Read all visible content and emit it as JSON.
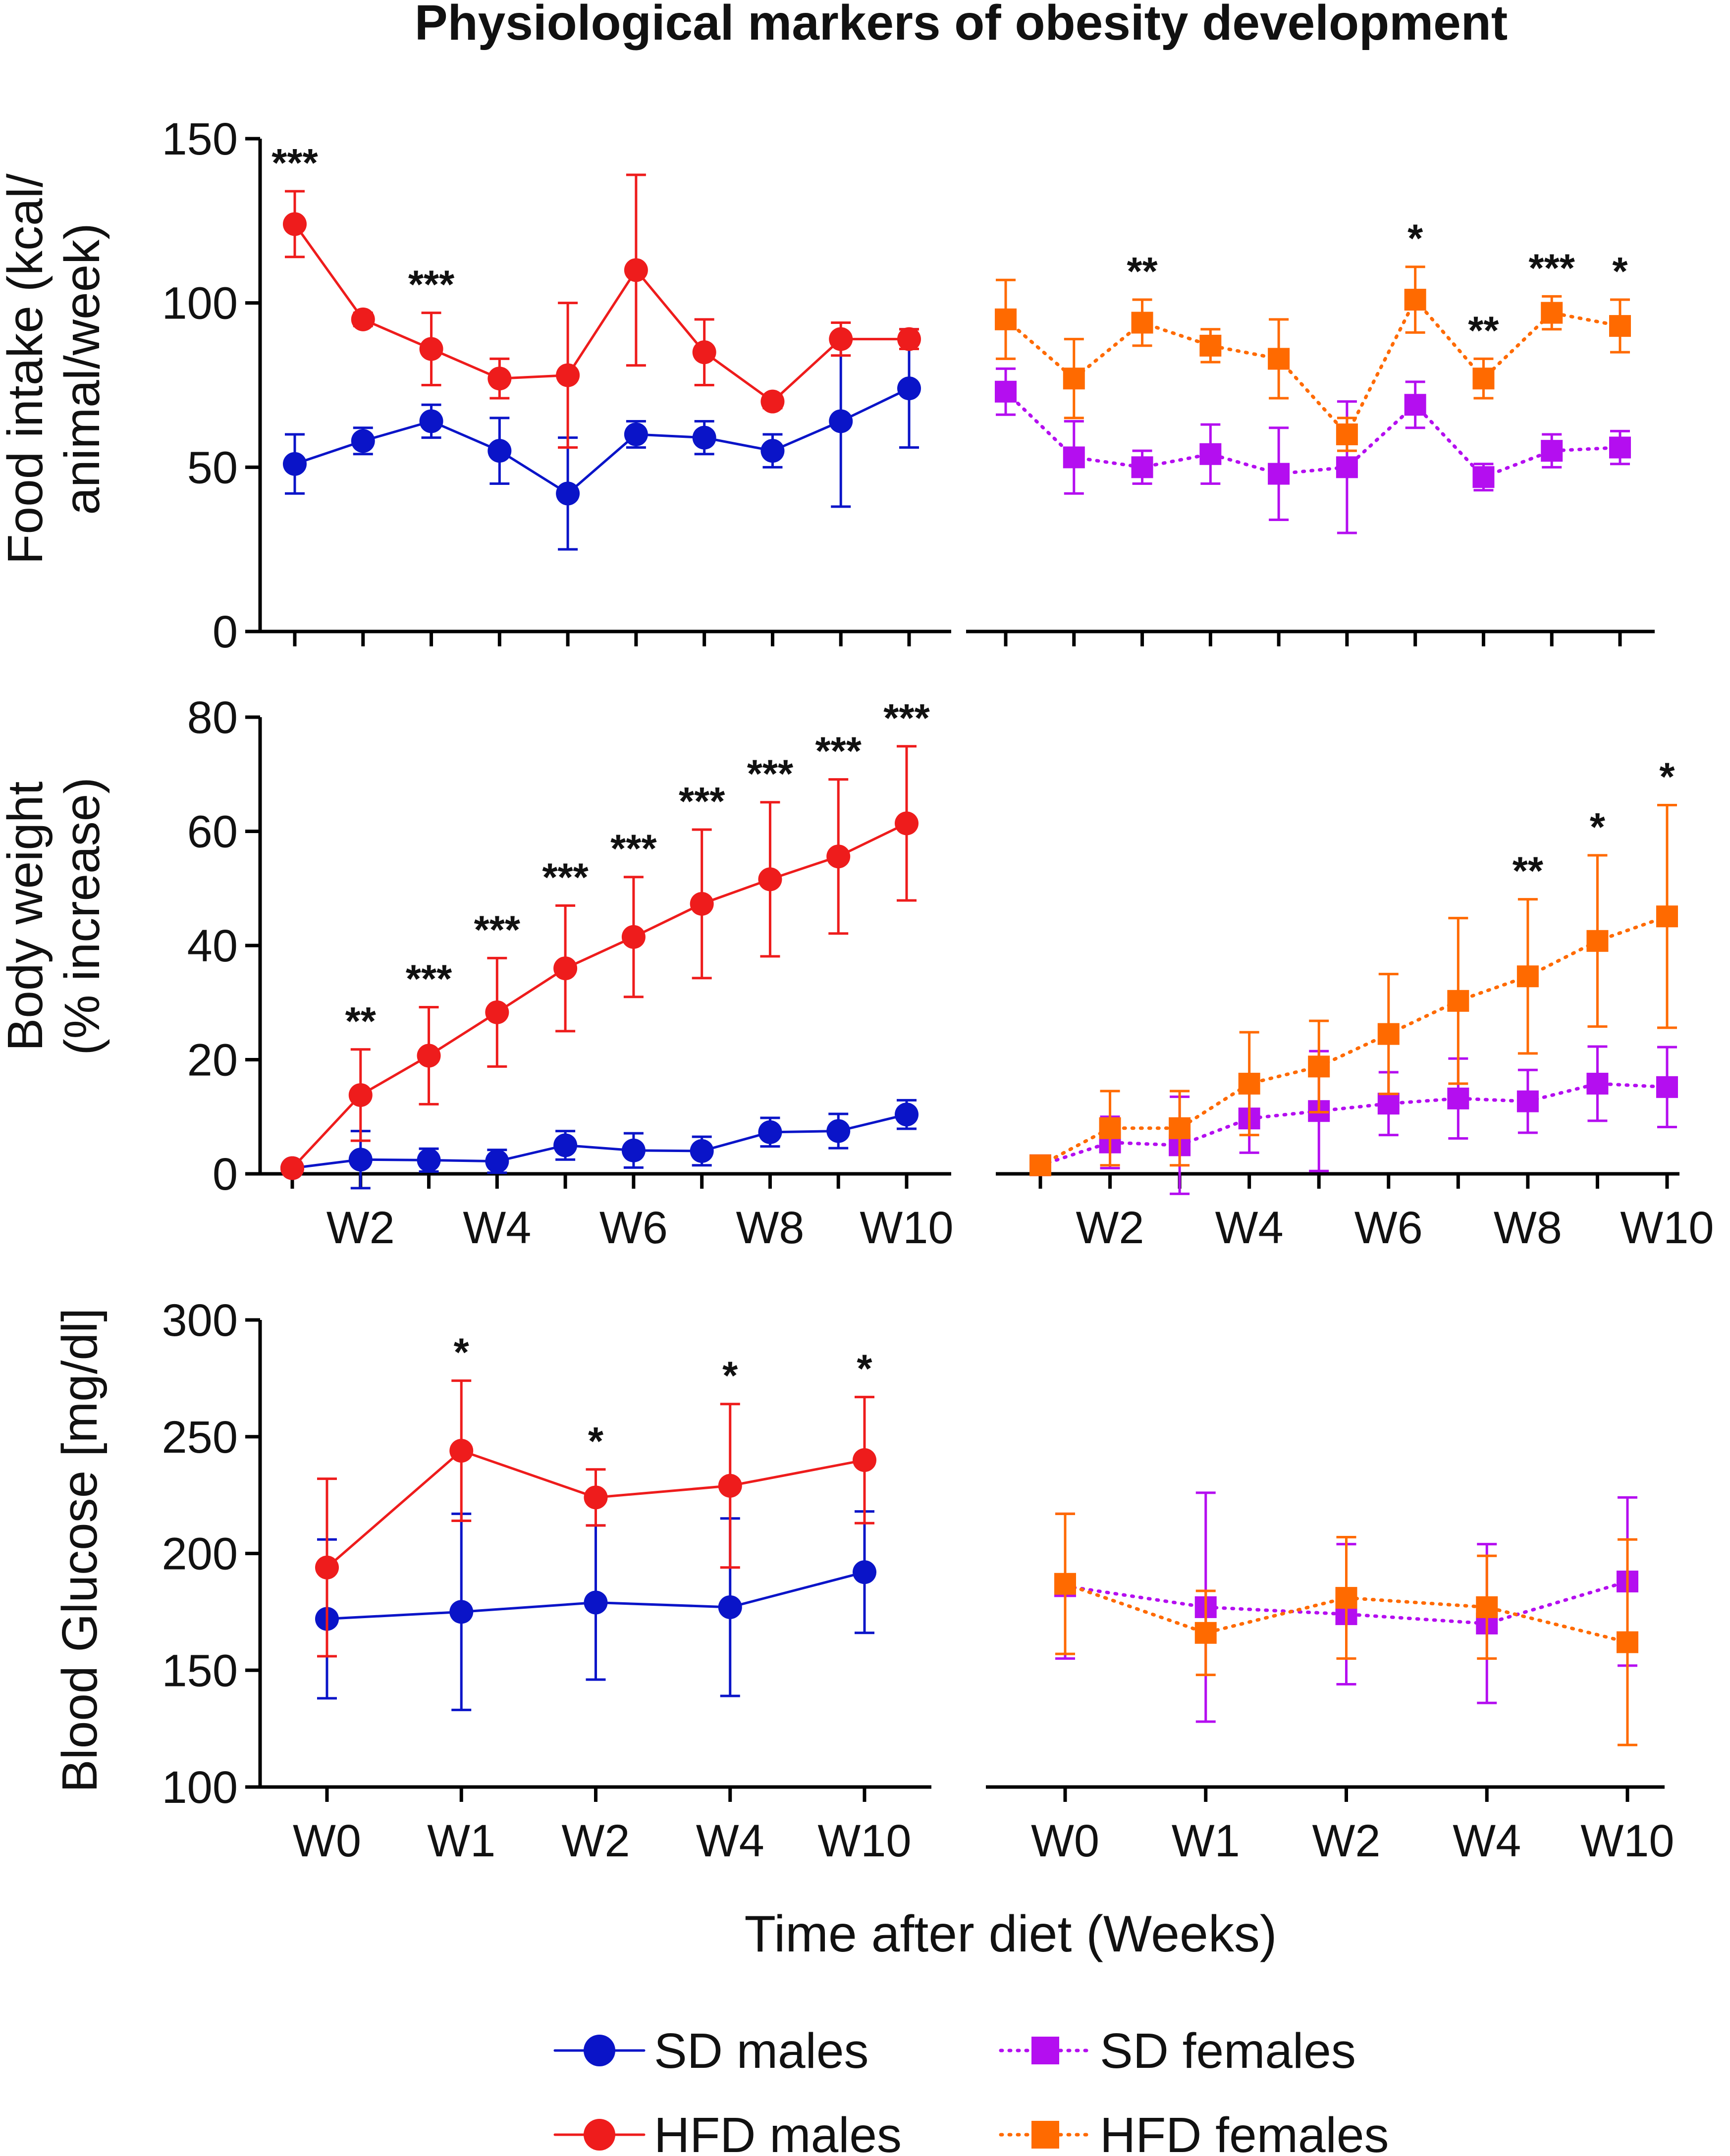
{
  "figure_title": "Physiological markers of obesity development",
  "x_axis_title": "Time after diet (Weeks)",
  "colors": {
    "sd_males": "#0a14c8",
    "hfd_males": "#ee1c1c",
    "sd_females": "#b40ef0",
    "hfd_females": "#ff6a00"
  },
  "legend": [
    {
      "key": "sd_males",
      "label": "SD males",
      "marker": "circle",
      "line": "solid"
    },
    {
      "key": "sd_females",
      "label": "SD females",
      "marker": "square",
      "line": "dotted"
    },
    {
      "key": "hfd_males",
      "label": "HFD males",
      "marker": "circle",
      "line": "solid"
    },
    {
      "key": "hfd_females",
      "label": "HFD females",
      "marker": "square",
      "line": "dotted"
    }
  ],
  "chart_data": [
    {
      "id": "food_intake_males",
      "type": "line",
      "title": "",
      "ylabel": "Food intake (kcal/\nanimal/week)",
      "xlabel": "",
      "ylim": [
        0,
        150
      ],
      "yticks": [
        0,
        50,
        100,
        150
      ],
      "x": [
        1,
        2,
        3,
        4,
        5,
        6,
        7,
        8,
        9,
        10
      ],
      "xtick_labels": [],
      "series": [
        {
          "name": "SD males",
          "key": "sd_males",
          "values": [
            51,
            58,
            64,
            55,
            42,
            60,
            59,
            55,
            64,
            74
          ],
          "errors": [
            9,
            4,
            5,
            10,
            17,
            4,
            5,
            5,
            26,
            18
          ]
        },
        {
          "name": "HFD males",
          "key": "hfd_males",
          "values": [
            124,
            95,
            86,
            77,
            78,
            110,
            85,
            70,
            89,
            89
          ],
          "errors": [
            10,
            2,
            11,
            6,
            22,
            29,
            10,
            2,
            5,
            3
          ]
        }
      ],
      "significance": [
        {
          "x": 1,
          "label": "***"
        },
        {
          "x": 3,
          "label": "***"
        }
      ]
    },
    {
      "id": "food_intake_females",
      "type": "line",
      "title": "",
      "ylabel": "",
      "xlabel": "",
      "ylim": [
        0,
        150
      ],
      "yticks": [],
      "x": [
        1,
        2,
        3,
        4,
        5,
        6,
        7,
        8,
        9,
        10
      ],
      "xtick_labels": [],
      "series": [
        {
          "name": "SD females",
          "key": "sd_females",
          "values": [
            73,
            53,
            50,
            54,
            48,
            50,
            69,
            47,
            55,
            56
          ],
          "errors": [
            7,
            11,
            5,
            9,
            14,
            20,
            7,
            4,
            5,
            5
          ]
        },
        {
          "name": "HFD females",
          "key": "hfd_females",
          "values": [
            95,
            77,
            94,
            87,
            83,
            60,
            101,
            77,
            97,
            93
          ],
          "errors": [
            12,
            12,
            7,
            5,
            12,
            5,
            10,
            6,
            5,
            8
          ]
        }
      ],
      "significance": [
        {
          "x": 3,
          "label": "**"
        },
        {
          "x": 7,
          "label": "*"
        },
        {
          "x": 8,
          "label": "**"
        },
        {
          "x": 9,
          "label": "***"
        },
        {
          "x": 10,
          "label": "*"
        }
      ]
    },
    {
      "id": "body_weight_males",
      "type": "line",
      "title": "",
      "ylabel": "Body weight\n(% increase)",
      "xlabel": "",
      "ylim": [
        0,
        80
      ],
      "yticks": [
        0,
        20,
        40,
        60,
        80
      ],
      "x": [
        1,
        2,
        3,
        4,
        5,
        6,
        7,
        8,
        9,
        10
      ],
      "xtick_labels": [
        {
          "x": 2,
          "label": "W2"
        },
        {
          "x": 4,
          "label": "W4"
        },
        {
          "x": 6,
          "label": "W6"
        },
        {
          "x": 8,
          "label": "W8"
        },
        {
          "x": 10,
          "label": "W10"
        }
      ],
      "series": [
        {
          "name": "SD males",
          "key": "sd_males",
          "values": [
            1,
            2.5,
            2.4,
            2.2,
            5,
            4.1,
            4,
            7.3,
            7.5,
            10.4
          ],
          "errors": [
            0.5,
            5,
            2,
            2,
            2.5,
            3,
            2.5,
            2.5,
            3,
            2.5
          ]
        },
        {
          "name": "HFD males",
          "key": "hfd_males",
          "values": [
            1,
            13.8,
            20.7,
            28.3,
            36,
            41.5,
            47.3,
            51.6,
            55.6,
            61.4
          ],
          "errors": [
            0.5,
            8,
            8.5,
            9.5,
            11,
            10.5,
            13,
            13.5,
            13.5,
            13.5
          ]
        }
      ],
      "significance": [
        {
          "x": 2,
          "label": "**"
        },
        {
          "x": 3,
          "label": "***"
        },
        {
          "x": 4,
          "label": "***"
        },
        {
          "x": 5,
          "label": "***"
        },
        {
          "x": 6,
          "label": "***"
        },
        {
          "x": 7,
          "label": "***"
        },
        {
          "x": 8,
          "label": "***"
        },
        {
          "x": 9,
          "label": "***"
        },
        {
          "x": 10,
          "label": "***"
        }
      ]
    },
    {
      "id": "body_weight_females",
      "type": "line",
      "title": "",
      "ylabel": "",
      "xlabel": "",
      "ylim": [
        0,
        80
      ],
      "yticks": [],
      "x": [
        1,
        2,
        3,
        4,
        5,
        6,
        7,
        8,
        9,
        10
      ],
      "xtick_labels": [
        {
          "x": 2,
          "label": "W2"
        },
        {
          "x": 4,
          "label": "W4"
        },
        {
          "x": 6,
          "label": "W6"
        },
        {
          "x": 8,
          "label": "W8"
        },
        {
          "x": 10,
          "label": "W10"
        }
      ],
      "series": [
        {
          "name": "SD females",
          "key": "sd_females",
          "values": [
            1.5,
            5.5,
            5,
            9.7,
            11,
            12.3,
            13.2,
            12.7,
            15.8,
            15.2
          ],
          "errors": [
            0.5,
            4.5,
            8.5,
            6,
            10.5,
            5.5,
            7,
            5.5,
            6.5,
            7
          ]
        },
        {
          "name": "HFD females",
          "key": "hfd_females",
          "values": [
            1.5,
            8,
            8,
            15.8,
            18.8,
            24.5,
            30.3,
            34.6,
            40.8,
            45.1
          ],
          "errors": [
            0.5,
            6.5,
            6.5,
            9,
            8,
            10.5,
            14.5,
            13.5,
            15,
            19.5
          ]
        }
      ],
      "significance": [
        {
          "x": 8,
          "label": "**"
        },
        {
          "x": 9,
          "label": "*"
        },
        {
          "x": 10,
          "label": "*"
        }
      ]
    },
    {
      "id": "blood_glucose_males",
      "type": "line",
      "title": "",
      "ylabel": "Blood Glucose [mg/dl]",
      "xlabel": "Time after diet (Weeks)",
      "ylim": [
        100,
        300
      ],
      "yticks": [
        100,
        150,
        200,
        250,
        300
      ],
      "x": [
        0,
        1,
        2,
        3,
        4
      ],
      "xtick_labels": [
        {
          "x": 0,
          "label": "W0"
        },
        {
          "x": 1,
          "label": "W1"
        },
        {
          "x": 2,
          "label": "W2"
        },
        {
          "x": 3,
          "label": "W4"
        },
        {
          "x": 4,
          "label": "W10"
        }
      ],
      "series": [
        {
          "name": "SD males",
          "key": "sd_males",
          "values": [
            172,
            175,
            179,
            177,
            192
          ],
          "errors": [
            34,
            42,
            33,
            38,
            26
          ]
        },
        {
          "name": "HFD males",
          "key": "hfd_males",
          "values": [
            194,
            244,
            224,
            229,
            240
          ],
          "errors": [
            38,
            30,
            12,
            35,
            27
          ]
        }
      ],
      "significance": [
        {
          "x": 1,
          "label": "*"
        },
        {
          "x": 2,
          "label": "*"
        },
        {
          "x": 3,
          "label": "*"
        },
        {
          "x": 4,
          "label": "*"
        }
      ]
    },
    {
      "id": "blood_glucose_females",
      "type": "line",
      "title": "",
      "ylabel": "",
      "xlabel": "Time after diet (Weeks)",
      "ylim": [
        100,
        300
      ],
      "yticks": [],
      "x": [
        0,
        1,
        2,
        3,
        4
      ],
      "xtick_labels": [
        {
          "x": 0,
          "label": "W0"
        },
        {
          "x": 1,
          "label": "W1"
        },
        {
          "x": 2,
          "label": "W2"
        },
        {
          "x": 3,
          "label": "W4"
        },
        {
          "x": 4,
          "label": "W10"
        }
      ],
      "series": [
        {
          "name": "SD females",
          "key": "sd_females",
          "values": [
            186,
            177,
            174,
            170,
            188
          ],
          "errors": [
            31,
            49,
            30,
            34,
            36
          ]
        },
        {
          "name": "HFD females",
          "key": "hfd_females",
          "values": [
            187,
            166,
            181,
            177,
            162
          ],
          "errors": [
            30,
            18,
            26,
            22,
            44
          ]
        }
      ],
      "significance": []
    }
  ]
}
